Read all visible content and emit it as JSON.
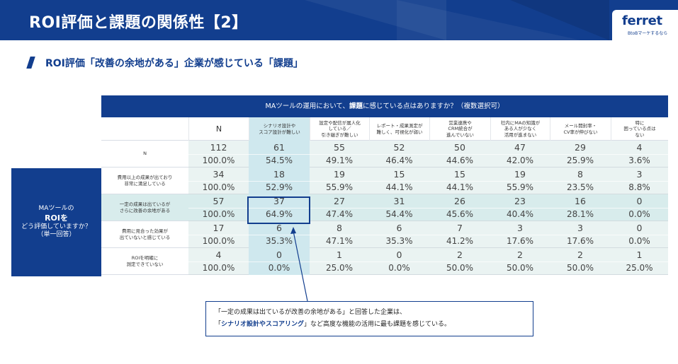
{
  "header": {
    "title": "ROI評価と課題の関係性【2】",
    "logo_text": "ferret",
    "logo_tagline": "BtoBマーケするなら"
  },
  "subtitle": "ROI評価「改善の余地がある」企業が感じている「課題」",
  "table": {
    "question_prefix": "MAツールの運用において、",
    "question_emphasis": "課題",
    "question_suffix": "に感じている点はありますか？（複数選択可）",
    "side_label_line1": "MAツールの",
    "side_label_line2": "ROIを",
    "side_label_line3": "どう評価していますか？",
    "side_label_line4": "（単一回答）",
    "columns": [
      {
        "label": "N"
      },
      {
        "label": "シナリオ設計や\nスコア設計が難しい"
      },
      {
        "label": "設定や配信が属人化\nしている／\n引き継ぎが難しい"
      },
      {
        "label": "レポート・成果測定が\n難しく、可視化が弱い"
      },
      {
        "label": "営業連携や\nCRM統合が\n進んでいない"
      },
      {
        "label": "社内にMAの知識が\nある人が少なく\n活用が進まない"
      },
      {
        "label": "メール開封率・\nCV率が伸びない"
      },
      {
        "label": "特に\n困っている点は\nない"
      }
    ],
    "rows": [
      {
        "label": "N",
        "counts": [
          "112",
          "61",
          "55",
          "52",
          "50",
          "47",
          "29",
          "4"
        ],
        "pcts": [
          "100.0%",
          "54.5%",
          "49.1%",
          "46.4%",
          "44.6%",
          "42.0%",
          "25.9%",
          "3.6%"
        ]
      },
      {
        "label": "費用以上の成果が出ており\n非常に満足している",
        "counts": [
          "34",
          "18",
          "19",
          "15",
          "15",
          "19",
          "8",
          "3"
        ],
        "pcts": [
          "100.0%",
          "52.9%",
          "55.9%",
          "44.1%",
          "44.1%",
          "55.9%",
          "23.5%",
          "8.8%"
        ]
      },
      {
        "label": "一定の成果は出ているが\nさらに改善の余地がある",
        "counts": [
          "57",
          "37",
          "27",
          "31",
          "26",
          "23",
          "16",
          "0"
        ],
        "pcts": [
          "100.0%",
          "64.9%",
          "47.4%",
          "54.4%",
          "45.6%",
          "40.4%",
          "28.1%",
          "0.0%"
        ]
      },
      {
        "label": "費用に見合った効果が\n出ていないと感じている",
        "counts": [
          "17",
          "6",
          "8",
          "6",
          "7",
          "3",
          "3",
          "0"
        ],
        "pcts": [
          "100.0%",
          "35.3%",
          "47.1%",
          "35.3%",
          "41.2%",
          "17.6%",
          "17.6%",
          "0.0%"
        ]
      },
      {
        "label": "ROIを明確に\n測定できていない",
        "counts": [
          "4",
          "0",
          "1",
          "0",
          "2",
          "2",
          "2",
          "1"
        ],
        "pcts": [
          "100.0%",
          "0.0%",
          "25.0%",
          "0.0%",
          "50.0%",
          "50.0%",
          "50.0%",
          "25.0%"
        ]
      }
    ]
  },
  "callout": {
    "line1": "「一定の成果は出ているが改善の余地がある」と回答した企業は、",
    "line2_prefix": "「",
    "line2_emphasis": "シナリオ設計やスコアリング",
    "line2_suffix": "」など高度な機能の活用に最も課題を感じている。"
  },
  "colors": {
    "brand_navy": "#123e8e",
    "row_band": "#eaf3f2",
    "highlight_col": "#cfe8ee",
    "highlight_row": "#d8ecec"
  }
}
